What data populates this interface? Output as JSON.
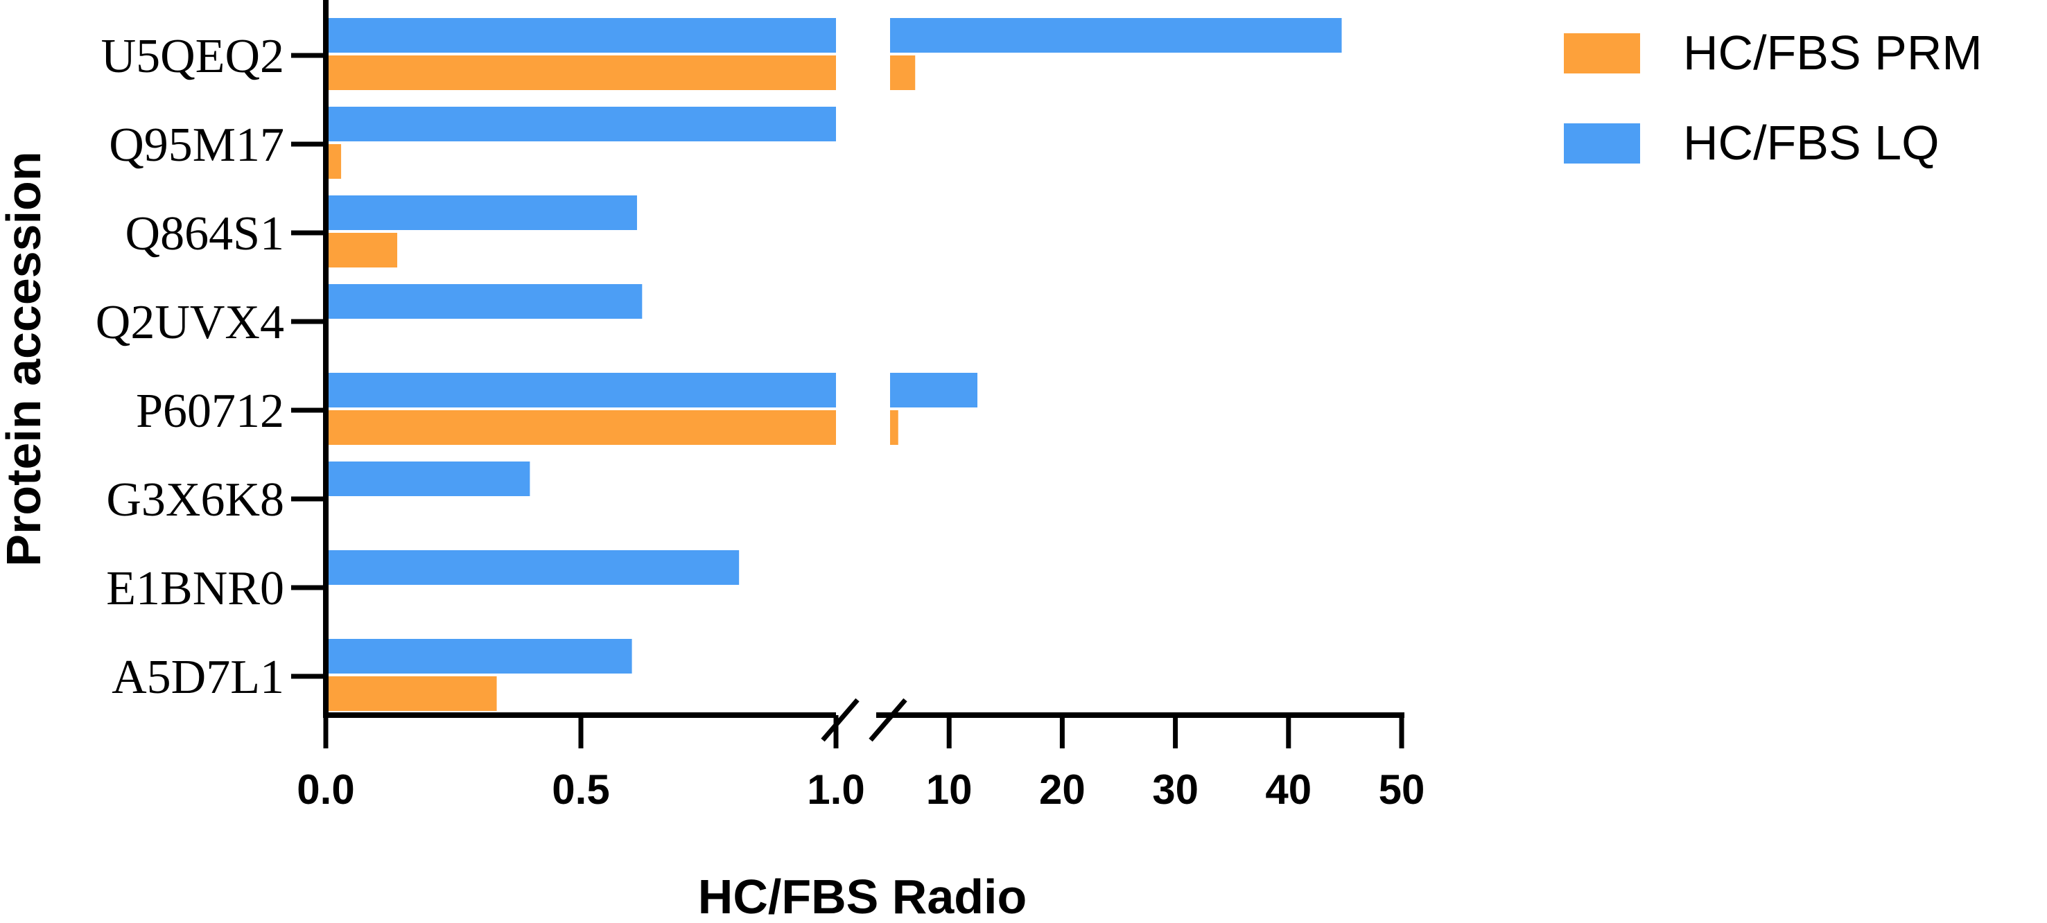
{
  "chart_data": {
    "type": "bar",
    "orientation": "horizontal",
    "categories": [
      "U5QEQ2",
      "Q95M17",
      "Q864S1",
      "Q2UVX4",
      "P60712",
      "G3X6K8",
      "E1BNR0",
      "A5D7L1"
    ],
    "series": [
      {
        "name": "HC/FBS LQ",
        "color": "#4c9ef5",
        "values": [
          44.7,
          1.0,
          0.61,
          0.62,
          12.5,
          0.4,
          0.81,
          0.6
        ]
      },
      {
        "name": "HC/FBS PRM",
        "color": "#fda13b",
        "values": [
          7.0,
          0.03,
          0.14,
          null,
          5.5,
          0.005,
          null,
          0.335
        ]
      }
    ],
    "xlabel": "HC/FBS Radio",
    "ylabel": "Protein accession",
    "x_axis": {
      "broken": true,
      "segments": [
        {
          "range": [
            0,
            1.0
          ],
          "ticks": [
            0.0,
            0.5,
            1.0
          ]
        },
        {
          "range": [
            5,
            50
          ],
          "ticks": [
            10,
            20,
            30,
            40,
            50
          ]
        }
      ]
    },
    "tick_labels": [
      "0.0",
      "0.5",
      "1.0",
      "10",
      "20",
      "30",
      "40",
      "50"
    ],
    "legend": {
      "position": "top-right",
      "entries": [
        {
          "label": "HC/FBS PRM",
          "color": "#fda13b"
        },
        {
          "label": "HC/FBS LQ",
          "color": "#4c9ef5"
        }
      ]
    },
    "grid": false
  }
}
